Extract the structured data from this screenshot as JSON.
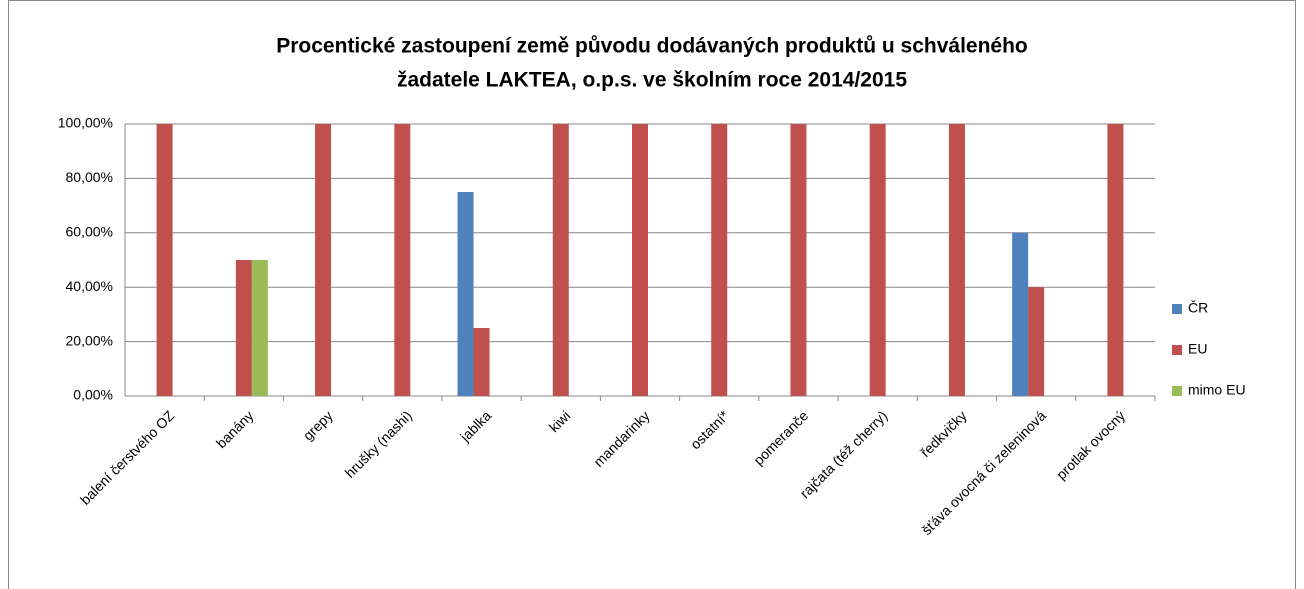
{
  "chart_data": {
    "type": "bar",
    "title": [
      "Procentické zastoupení země původu dodávaných produktů u schváleného",
      "žadatele LAKTEA, o.p.s. ve školním roce 2014/2015"
    ],
    "categories": [
      "balení čerstvého OZ",
      "banány",
      "grepy",
      "hrušky (nashi)",
      "jablka",
      "kiwi",
      "mandarinky",
      "ostatní*",
      "pomeranče",
      "rajčata (též cherry)",
      "ředkvičky",
      "šťáva ovocná či zeleninová",
      "protlak ovocný"
    ],
    "series": [
      {
        "name": "ČR",
        "color": "#4f81bd",
        "values": [
          0,
          0,
          0,
          0,
          75,
          0,
          0,
          0,
          0,
          0,
          0,
          60,
          0
        ]
      },
      {
        "name": "EU",
        "color": "#c0504d",
        "values": [
          100,
          50,
          100,
          100,
          25,
          100,
          100,
          100,
          100,
          100,
          100,
          40,
          100
        ]
      },
      {
        "name": "mimo EU",
        "color": "#9bbb59",
        "values": [
          0,
          50,
          0,
          0,
          0,
          0,
          0,
          0,
          0,
          0,
          0,
          0,
          0
        ]
      }
    ],
    "ylim": [
      0,
      100
    ],
    "yticks": [
      {
        "value": 0,
        "label": "0,00%"
      },
      {
        "value": 20,
        "label": "20,00%"
      },
      {
        "value": 40,
        "label": "40,00%"
      },
      {
        "value": 60,
        "label": "60,00%"
      },
      {
        "value": 80,
        "label": "80,00%"
      },
      {
        "value": 100,
        "label": "100,00%"
      }
    ],
    "grid": true,
    "legend": "right"
  }
}
